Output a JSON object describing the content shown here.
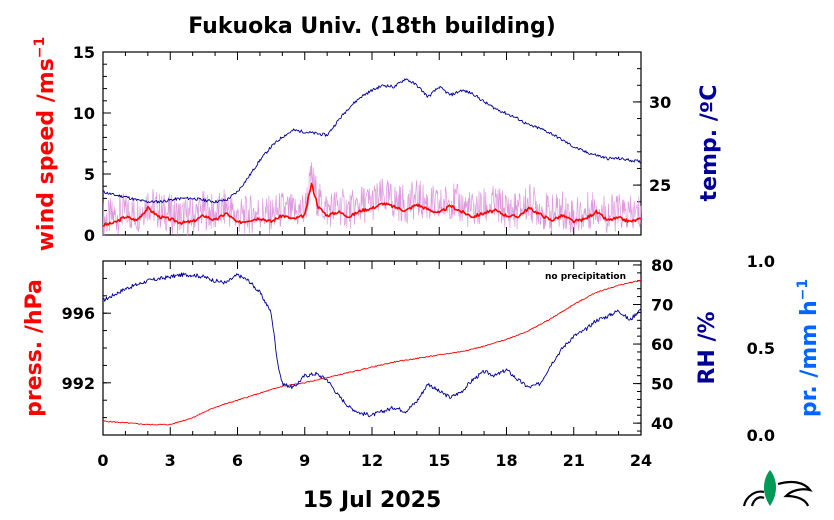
{
  "title": "Fukuoka Univ. (18th building)",
  "date_label": "15 Jul 2025",
  "precip_note": "no precipitation",
  "colors": {
    "wind": "#ff0000",
    "wind_raw": "#dd99dd",
    "temp": "#000099",
    "pressure": "#ff0000",
    "rh": "#000099",
    "precip": "#0066ff",
    "logo": "#009955"
  },
  "chart_data": [
    {
      "type": "line",
      "name": "top-panel",
      "x_ticks": [
        "0",
        "3",
        "6",
        "9",
        "12",
        "15",
        "18",
        "21",
        "24"
      ],
      "xlim": [
        0,
        24
      ],
      "left_axis": {
        "label": "wind speed /ms",
        "label_sup": "−1",
        "ylim": [
          0,
          15
        ],
        "ticks": [
          "0",
          "5",
          "10",
          "15"
        ]
      },
      "right_axis": {
        "label": "temp. /ºC",
        "ylim": [
          22,
          33
        ],
        "ticks": [
          "25",
          "30"
        ]
      },
      "series": [
        {
          "name": "wind speed",
          "axis": "left",
          "x": [
            0,
            0.5,
            1,
            1.5,
            2,
            2.5,
            3,
            3.5,
            4,
            4.5,
            5,
            5.5,
            6,
            6.5,
            7,
            7.5,
            8,
            8.5,
            9,
            9.3,
            9.6,
            10,
            10.5,
            11,
            11.5,
            12,
            12.5,
            13,
            13.5,
            14,
            14.5,
            15,
            15.5,
            16,
            16.5,
            17,
            17.5,
            18,
            18.5,
            19,
            19.5,
            20,
            20.5,
            21,
            21.5,
            22,
            22.5,
            23,
            23.5,
            24
          ],
          "values": [
            0.8,
            1.0,
            1.5,
            1.2,
            2.2,
            1.5,
            1.3,
            1.0,
            1.1,
            1.6,
            1.2,
            1.8,
            1.0,
            1.2,
            1.4,
            1.1,
            1.6,
            1.3,
            1.6,
            4.2,
            2.3,
            1.6,
            1.9,
            1.5,
            2.0,
            2.2,
            2.6,
            2.3,
            2.0,
            2.5,
            2.1,
            1.8,
            2.4,
            1.9,
            1.5,
            1.8,
            2.0,
            1.6,
            1.5,
            2.2,
            1.7,
            1.2,
            1.6,
            1.1,
            1.3,
            1.9,
            1.2,
            1.4,
            1.1,
            1.3
          ]
        },
        {
          "name": "temperature",
          "axis": "right",
          "x": [
            0,
            0.5,
            1,
            1.5,
            2,
            2.5,
            3,
            3.5,
            4,
            4.5,
            5,
            5.5,
            6,
            6.5,
            7,
            7.5,
            8,
            8.5,
            9,
            9.5,
            10,
            10.5,
            11,
            11.5,
            12,
            12.5,
            13,
            13.5,
            14,
            14.5,
            15,
            15.5,
            16,
            16.5,
            17,
            17.5,
            18,
            18.5,
            19,
            19.5,
            20,
            20.5,
            21,
            21.5,
            22,
            22.5,
            23,
            23.5,
            24
          ],
          "values": [
            24.6,
            24.4,
            24.3,
            24.1,
            24.0,
            24.0,
            24.1,
            24.2,
            24.2,
            24.1,
            24.0,
            24.1,
            24.6,
            25.5,
            26.5,
            27.3,
            27.9,
            28.3,
            28.2,
            28.1,
            28.0,
            28.9,
            29.7,
            30.3,
            30.7,
            31.0,
            30.9,
            31.4,
            31.0,
            30.3,
            30.9,
            30.4,
            30.7,
            30.5,
            30.0,
            29.6,
            29.3,
            29.0,
            28.6,
            28.4,
            28.1,
            27.7,
            27.3,
            27.0,
            26.8,
            26.6,
            26.6,
            26.5,
            26.4
          ]
        }
      ]
    },
    {
      "type": "line",
      "name": "bottom-panel",
      "x_ticks": [
        "0",
        "3",
        "6",
        "9",
        "12",
        "15",
        "18",
        "21",
        "24"
      ],
      "xlim": [
        0,
        24
      ],
      "left_axis": {
        "label": "press. /hPa",
        "ylim": [
          989,
          999
        ],
        "ticks": [
          "992",
          "996"
        ]
      },
      "right_axis": {
        "label": "RH /%",
        "ylim": [
          37,
          81
        ],
        "ticks": [
          "40",
          "50",
          "60",
          "70",
          "80"
        ]
      },
      "precip_axis": {
        "label": "pr. /mm h",
        "label_sup": "−1",
        "ylim": [
          0,
          1
        ],
        "ticks": [
          "0.0",
          "0.5",
          "1.0"
        ]
      },
      "series": [
        {
          "name": "pressure",
          "axis": "left",
          "x": [
            0,
            1,
            2,
            3,
            4,
            5,
            6,
            7,
            8,
            9,
            10,
            11,
            12,
            13,
            14,
            15,
            16,
            17,
            18,
            19,
            20,
            21,
            22,
            23,
            24
          ],
          "values": [
            989.8,
            989.7,
            989.6,
            989.6,
            990.0,
            990.6,
            991.0,
            991.4,
            991.8,
            992.0,
            992.3,
            992.6,
            992.9,
            993.2,
            993.4,
            993.6,
            993.8,
            994.1,
            994.5,
            995.0,
            995.7,
            996.5,
            997.2,
            997.6,
            997.9
          ]
        },
        {
          "name": "relative humidity",
          "axis": "right",
          "x": [
            0,
            0.5,
            1,
            1.5,
            2,
            2.5,
            3,
            3.5,
            4,
            4.5,
            5,
            5.5,
            6,
            6.5,
            7,
            7.5,
            7.8,
            8,
            8.5,
            9,
            9.5,
            10,
            10.5,
            11,
            11.5,
            12,
            12.5,
            13,
            13.5,
            14,
            14.5,
            15,
            15.5,
            16,
            16.5,
            17,
            17.5,
            18,
            18.5,
            19,
            19.5,
            20,
            20.5,
            21,
            21.5,
            22,
            22.5,
            23,
            23.5,
            24
          ],
          "values": [
            71,
            72.5,
            74,
            75,
            76,
            76.5,
            77,
            77.5,
            77.5,
            77,
            76,
            75.5,
            77.5,
            76,
            73,
            68,
            55,
            50,
            49,
            52,
            52.5,
            51,
            47,
            44,
            42.5,
            42,
            43,
            44,
            43,
            45.5,
            50,
            48,
            46.5,
            48,
            51,
            53,
            52,
            53.5,
            51,
            49,
            50,
            55,
            59,
            62,
            63.5,
            66,
            67,
            68.5,
            66,
            69
          ]
        }
      ]
    }
  ]
}
